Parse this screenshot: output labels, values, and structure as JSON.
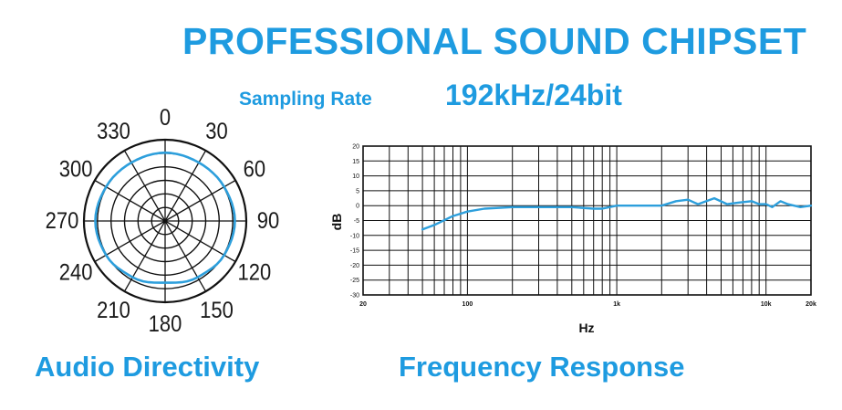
{
  "headline": "PROFESSIONAL SOUND CHIPSET",
  "sampling": {
    "label": "Sampling Rate",
    "value": "192kHz/24bit"
  },
  "captions": {
    "directivity": "Audio Directivity",
    "frequency": "Frequency Response"
  },
  "colors": {
    "accent": "#1e9be0",
    "curve": "#2d9fdc",
    "grid": "#111111"
  },
  "chart_data": [
    {
      "type": "polar",
      "title": "Audio Directivity",
      "angle_labels": [
        "0",
        "30",
        "60",
        "90",
        "120",
        "150",
        "180",
        "210",
        "240",
        "270",
        "300",
        "330"
      ],
      "angles_deg": [
        0,
        30,
        60,
        90,
        120,
        150,
        180,
        210,
        240,
        270,
        300,
        330
      ],
      "rings": 6,
      "pattern": {
        "name": "",
        "angles_deg": [
          0,
          30,
          60,
          90,
          120,
          150,
          180,
          210,
          240,
          270,
          300,
          330
        ],
        "relative_radius": [
          0.84,
          0.83,
          0.84,
          0.86,
          0.84,
          0.8,
          0.76,
          0.8,
          0.84,
          0.86,
          0.84,
          0.83
        ]
      }
    },
    {
      "type": "line",
      "title": "Frequency Response",
      "xlabel": "Hz",
      "ylabel": "dB",
      "xscale": "log",
      "xlim": [
        20,
        20000
      ],
      "ylim": [
        -30,
        20
      ],
      "x_tick_labels": [
        {
          "value": 20,
          "label": "20"
        },
        {
          "value": 100,
          "label": "100"
        },
        {
          "value": 1000,
          "label": "1k"
        },
        {
          "value": 10000,
          "label": "10k"
        },
        {
          "value": 20000,
          "label": "20k"
        }
      ],
      "y_ticks": [
        20,
        15,
        10,
        5,
        0,
        -5,
        -10,
        -15,
        -20,
        -25,
        -30
      ],
      "grid": true,
      "series": [
        {
          "name": "",
          "x": [
            50,
            60,
            80,
            100,
            130,
            200,
            300,
            500,
            700,
            800,
            1000,
            1500,
            2000,
            2500,
            3000,
            3500,
            4500,
            5500,
            6500,
            8000,
            9000,
            10000,
            11000,
            12500,
            14000,
            17000,
            20000
          ],
          "y": [
            -8,
            -6.5,
            -3.5,
            -2,
            -1,
            -0.5,
            -0.5,
            -0.5,
            -1,
            -1,
            0,
            0,
            0,
            1.5,
            2,
            0.5,
            2.5,
            0.5,
            1,
            1.5,
            0.5,
            0.5,
            -0.5,
            1.5,
            0.5,
            -0.5,
            0
          ]
        }
      ]
    }
  ]
}
